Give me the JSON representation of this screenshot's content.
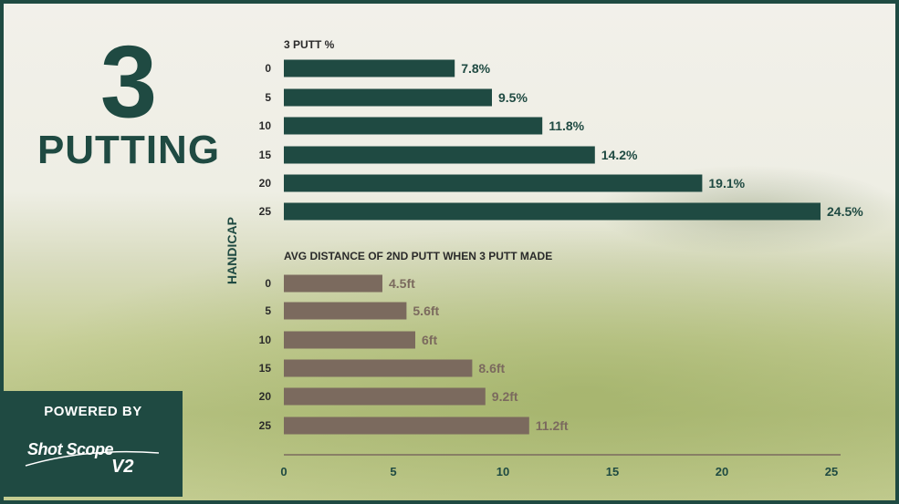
{
  "headline": {
    "number": "3",
    "word": "PUTTING"
  },
  "badge": {
    "powered_by": "POWERED BY",
    "logo_word": "Shot Scope",
    "logo_version": "V2"
  },
  "colors": {
    "dark_green": "#1f4a42",
    "brown": "#7b6a5e"
  },
  "chart_data": [
    {
      "type": "bar",
      "orientation": "horizontal",
      "title": "3 PUTT %",
      "categories": [
        "0",
        "5",
        "10",
        "15",
        "20",
        "25"
      ],
      "values": [
        7.8,
        9.5,
        11.8,
        14.2,
        19.1,
        24.5
      ],
      "value_labels": [
        "7.8%",
        "9.5%",
        "11.8%",
        "14.2%",
        "19.1%",
        "24.5%"
      ],
      "ylabel": "HANDICAP",
      "xlim": [
        0,
        25
      ],
      "color": "#1f4a42"
    },
    {
      "type": "bar",
      "orientation": "horizontal",
      "title": "AVG DISTANCE OF 2ND PUTT WHEN 3 PUTT MADE",
      "categories": [
        "0",
        "5",
        "10",
        "15",
        "20",
        "25"
      ],
      "values": [
        4.5,
        5.6,
        6,
        8.6,
        9.2,
        11.2
      ],
      "value_labels": [
        "4.5ft",
        "5.6ft",
        "6ft",
        "8.6ft",
        "9.2ft",
        "11.2ft"
      ],
      "ylabel": "HANDICAP",
      "xlim": [
        0,
        25
      ],
      "xticks": [
        "0",
        "5",
        "10",
        "15",
        "20",
        "25"
      ],
      "color": "#7b6a5e"
    }
  ]
}
